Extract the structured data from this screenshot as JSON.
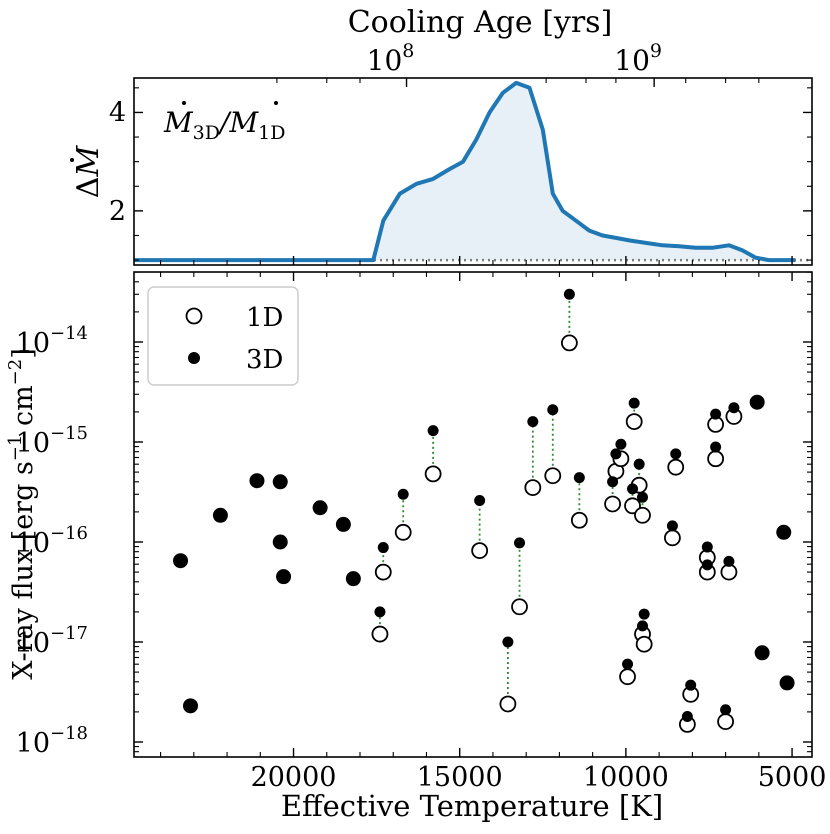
{
  "chart_data": [
    {
      "type": "area",
      "title": "",
      "annotation": "Ṁ3D/Ṁ1D",
      "annotation_parts": {
        "m1": "M",
        "s1": "3D",
        "slash": "/",
        "m2": "M",
        "s2": "1D"
      },
      "ylabel": "ΔṀ",
      "ylabel_parts": {
        "delta": "Δ",
        "m": "M"
      },
      "xlim": [
        24800,
        4400
      ],
      "ylim": [
        0.9,
        4.7
      ],
      "yticks": [
        {
          "value": 2,
          "label": "2"
        },
        {
          "value": 4,
          "label": "4"
        }
      ],
      "reference_line": {
        "y": 1.0,
        "style": "dotted",
        "color": "#7f7f7f"
      },
      "x": [
        24800,
        17600,
        17300,
        16800,
        16300,
        15800,
        15300,
        14900,
        14500,
        14100,
        13700,
        13300,
        12900,
        12500,
        12200,
        11900,
        11500,
        11100,
        10700,
        10300,
        9900,
        9400,
        8900,
        8400,
        7900,
        7400,
        6900,
        6500,
        6100,
        5700,
        5300,
        4900
      ],
      "y": [
        1.0,
        1.0,
        1.8,
        2.35,
        2.55,
        2.65,
        2.85,
        3.0,
        3.45,
        4.0,
        4.4,
        4.6,
        4.5,
        3.65,
        2.35,
        2.0,
        1.8,
        1.6,
        1.5,
        1.45,
        1.4,
        1.35,
        1.3,
        1.28,
        1.25,
        1.25,
        1.3,
        1.2,
        1.05,
        1.0,
        1.0,
        1.0
      ],
      "series_color": "#1f77b4",
      "fill_color": "#e7eff7"
    },
    {
      "type": "scatter",
      "title": "",
      "xlabel": "Effective Temperature [K]",
      "ylabel": "X-ray flux [erg s⁻¹ cm⁻²]",
      "ylabel_parts": {
        "main": "X-ray flux [erg s",
        "e1": "−1",
        "mid": " cm",
        "e2": "−2",
        "end": "]"
      },
      "xlim": [
        24800,
        4400
      ],
      "ylim_log10": [
        -18.15,
        -13.3
      ],
      "xticks": [
        {
          "value": 20000,
          "label": "20000"
        },
        {
          "value": 15000,
          "label": "15000"
        },
        {
          "value": 10000,
          "label": "10000"
        },
        {
          "value": 5000,
          "label": "5000"
        }
      ],
      "yticks": [
        {
          "exp": -14,
          "base": "10",
          "label": "−14"
        },
        {
          "exp": -15,
          "base": "10",
          "label": "−15"
        },
        {
          "exp": -16,
          "base": "10",
          "label": "−16"
        },
        {
          "exp": -17,
          "base": "10",
          "label": "−17"
        },
        {
          "exp": -18,
          "base": "10",
          "label": "−18"
        }
      ],
      "legend": {
        "position": "top-left",
        "entries": [
          {
            "marker": "open-circle",
            "label": "1D"
          },
          {
            "marker": "filled-circle",
            "label": "3D"
          }
        ]
      },
      "connector_color": "#2e8b2e",
      "pairs": [
        {
          "teff": 17400,
          "flux_1d": 1.2e-17,
          "flux_3d": 2e-17
        },
        {
          "teff": 17300,
          "flux_1d": 5e-17,
          "flux_3d": 8.8e-17
        },
        {
          "teff": 16700,
          "flux_1d": 1.25e-16,
          "flux_3d": 3e-16
        },
        {
          "teff": 15800,
          "flux_1d": 4.8e-16,
          "flux_3d": 1.3e-15
        },
        {
          "teff": 14400,
          "flux_1d": 8.2e-17,
          "flux_3d": 2.6e-16
        },
        {
          "teff": 13550,
          "flux_1d": 2.4e-18,
          "flux_3d": 1e-17
        },
        {
          "teff": 13200,
          "flux_1d": 2.25e-17,
          "flux_3d": 9.8e-17
        },
        {
          "teff": 12800,
          "flux_1d": 3.5e-16,
          "flux_3d": 1.6e-15
        },
        {
          "teff": 12200,
          "flux_1d": 4.6e-16,
          "flux_3d": 2.1e-15
        },
        {
          "teff": 11700,
          "flux_1d": 9.8e-15,
          "flux_3d": 3e-14
        },
        {
          "teff": 11400,
          "flux_1d": 1.65e-16,
          "flux_3d": 4.4e-16
        },
        {
          "teff": 10400,
          "flux_1d": 2.4e-16,
          "flux_3d": 4e-16
        },
        {
          "teff": 10300,
          "flux_1d": 5.1e-16,
          "flux_3d": 7.6e-16
        },
        {
          "teff": 10150,
          "flux_1d": 6.8e-16,
          "flux_3d": 9.5e-16
        },
        {
          "teff": 9950,
          "flux_1d": 4.5e-18,
          "flux_3d": 6e-18
        },
        {
          "teff": 9800,
          "flux_1d": 2.3e-16,
          "flux_3d": 3.4e-16
        },
        {
          "teff": 9750,
          "flux_1d": 1.6e-15,
          "flux_3d": 2.45e-15
        },
        {
          "teff": 9600,
          "flux_1d": 3.7e-16,
          "flux_3d": 6e-16
        },
        {
          "teff": 9500,
          "flux_1d": 1.85e-16,
          "flux_3d": 2.8e-16
        },
        {
          "teff": 9500,
          "flux_1d": 1.2e-17,
          "flux_3d": 1.45e-17
        },
        {
          "teff": 9450,
          "flux_1d": 9.5e-18,
          "flux_3d": 1.9e-17
        },
        {
          "teff": 8600,
          "flux_1d": 1.1e-16,
          "flux_3d": 1.45e-16
        },
        {
          "teff": 8500,
          "flux_1d": 5.6e-16,
          "flux_3d": 7.6e-16
        },
        {
          "teff": 8150,
          "flux_1d": 1.5e-18,
          "flux_3d": 1.8e-18
        },
        {
          "teff": 8050,
          "flux_1d": 3e-18,
          "flux_3d": 3.7e-18
        },
        {
          "teff": 7550,
          "flux_1d": 7e-17,
          "flux_3d": 8.9e-17
        },
        {
          "teff": 7550,
          "flux_1d": 5e-17,
          "flux_3d": 5.9e-17
        },
        {
          "teff": 7300,
          "flux_1d": 6.8e-16,
          "flux_3d": 8.9e-16
        },
        {
          "teff": 7300,
          "flux_1d": 1.5e-15,
          "flux_3d": 1.9e-15
        },
        {
          "teff": 7000,
          "flux_1d": 1.6e-18,
          "flux_3d": 2.1e-18
        },
        {
          "teff": 6900,
          "flux_1d": 5e-17,
          "flux_3d": 6.4e-17
        },
        {
          "teff": 6750,
          "flux_1d": 1.8e-15,
          "flux_3d": 2.2e-15
        }
      ],
      "single_3d": [
        {
          "teff": 23400,
          "flux": 6.5e-17
        },
        {
          "teff": 23100,
          "flux": 2.3e-18
        },
        {
          "teff": 22200,
          "flux": 1.85e-16
        },
        {
          "teff": 21100,
          "flux": 4.1e-16
        },
        {
          "teff": 20400,
          "flux": 4e-16
        },
        {
          "teff": 20400,
          "flux": 1e-16
        },
        {
          "teff": 20300,
          "flux": 4.5e-17
        },
        {
          "teff": 19200,
          "flux": 2.2e-16
        },
        {
          "teff": 18500,
          "flux": 1.5e-16
        },
        {
          "teff": 18200,
          "flux": 4.3e-17
        },
        {
          "teff": 6050,
          "flux": 2.5e-15
        },
        {
          "teff": 5900,
          "flux": 7.8e-18
        },
        {
          "teff": 5250,
          "flux": 1.25e-16
        },
        {
          "teff": 5150,
          "flux": 3.9e-18
        }
      ]
    }
  ],
  "top_axis": {
    "label": "Cooling Age [yrs]",
    "ticks": [
      {
        "base": "10",
        "exp": "8",
        "at_teff": 16600
      },
      {
        "base": "10",
        "exp": "9",
        "at_teff": 9150
      }
    ]
  }
}
